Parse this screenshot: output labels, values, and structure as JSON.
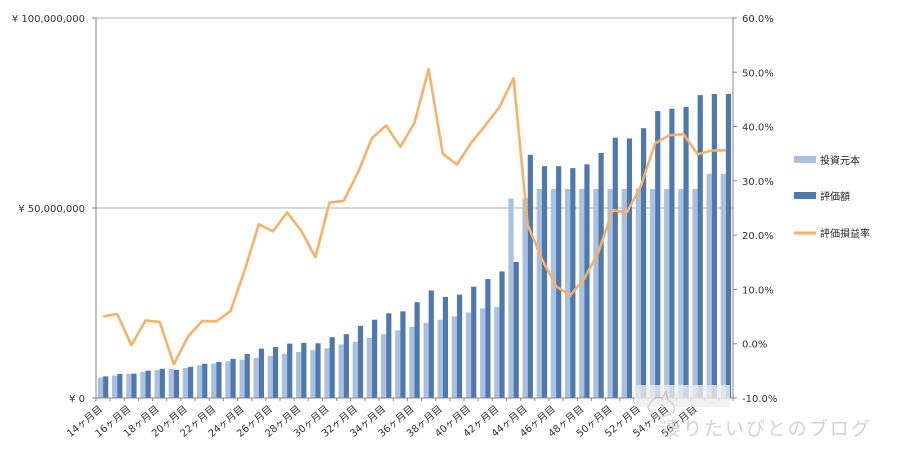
{
  "chart_data": {
    "type": "bar",
    "categories": [
      "14ヶ月目",
      "15ヶ月目",
      "16ヶ月目",
      "17ヶ月目",
      "18ヶ月目",
      "19ヶ月目",
      "20ヶ月目",
      "21ヶ月目",
      "22ヶ月目",
      "23ヶ月目",
      "24ヶ月目",
      "25ヶ月目",
      "26ヶ月目",
      "27ヶ月目",
      "28ヶ月目",
      "29ヶ月目",
      "30ヶ月目",
      "31ヶ月目",
      "32ヶ月目",
      "33ヶ月目",
      "34ヶ月目",
      "35ヶ月目",
      "36ヶ月目",
      "37ヶ月目",
      "38ヶ月目",
      "39ヶ月目",
      "40ヶ月目",
      "41ヶ月目",
      "42ヶ月目",
      "43ヶ月目",
      "44ヶ月目",
      "45ヶ月目",
      "46ヶ月目",
      "47ヶ月目",
      "48ヶ月目",
      "49ヶ月目",
      "50ヶ月目",
      "51ヶ月目",
      "52ヶ月目",
      "53ヶ月目",
      "54ヶ月目",
      "55ヶ月目",
      "56ヶ月目",
      "57ヶ月目",
      "58ヶ月目"
    ],
    "x_tick_labels": [
      "14ヶ月目",
      "16ヶ月目",
      "18ヶ月目",
      "20ヶ月目",
      "22ヶ月目",
      "24ヶ月目",
      "26ヶ月目",
      "28ヶ月目",
      "30ヶ月目",
      "32ヶ月目",
      "34ヶ月目",
      "36ヶ月目",
      "38ヶ月目",
      "40ヶ月目",
      "42ヶ月目",
      "44ヶ月目",
      "46ヶ月目",
      "48ヶ月目",
      "50ヶ月目",
      "52ヶ月目",
      "54ヶ月目",
      "56ヶ月目"
    ],
    "series": [
      {
        "name": "投資元本",
        "axis": "left",
        "kind": "bar",
        "color": "#a9c1de",
        "values": [
          5400000,
          5900000,
          6400000,
          6900000,
          7400000,
          7700000,
          7900000,
          8600000,
          9100000,
          9700000,
          10100000,
          10600000,
          11100000,
          11600000,
          12100000,
          12600000,
          13100000,
          14100000,
          14800000,
          15800000,
          16800000,
          17800000,
          18700000,
          19800000,
          20600000,
          21500000,
          22500000,
          23600000,
          24000000,
          52500000,
          52500000,
          55000000,
          55000000,
          55000000,
          55000000,
          55000000,
          55000000,
          55000000,
          55000000,
          55000000,
          55000000,
          55000000,
          55000000,
          59000000,
          59000000
        ]
      },
      {
        "name": "評価額",
        "axis": "left",
        "kind": "bar",
        "color": "#4f78ad",
        "values": [
          5700000,
          6300000,
          6400000,
          7200000,
          7700000,
          7400000,
          8200000,
          9000000,
          9500000,
          10300000,
          11600000,
          13000000,
          13400000,
          14300000,
          14500000,
          14400000,
          16000000,
          16800000,
          19000000,
          20600000,
          22300000,
          22800000,
          25200000,
          28300000,
          26600000,
          27200000,
          29300000,
          31300000,
          33300000,
          35800000,
          64000000,
          61000000,
          61000000,
          60500000,
          61500000,
          64500000,
          68500000,
          68300000,
          71000000,
          75500000,
          76100000,
          76600000,
          79700000,
          80000000,
          80000000
        ]
      },
      {
        "name": "評価損益率",
        "axis": "right",
        "kind": "line",
        "color": "#f8b16a",
        "values": [
          5.0,
          5.5,
          -0.3,
          4.3,
          4.0,
          -3.8,
          1.3,
          4.2,
          4.1,
          6.0,
          13.5,
          22.0,
          20.7,
          24.2,
          20.8,
          15.9,
          26.0,
          26.3,
          31.5,
          37.9,
          40.2,
          36.3,
          40.7,
          50.6,
          35.0,
          33.0,
          37.0,
          40.2,
          43.6,
          48.9,
          21.9,
          15.6,
          10.6,
          8.9,
          12.0,
          16.9,
          24.6,
          24.2,
          29.1,
          36.9,
          38.4,
          38.6,
          34.9,
          35.6,
          35.6
        ]
      }
    ],
    "y_left": {
      "min": 0,
      "max": 100000000,
      "ticks": [
        0,
        50000000,
        100000000
      ],
      "tick_labels": [
        "¥ 0",
        "¥ 50,000,000",
        "¥ 100,000,000"
      ]
    },
    "y_right": {
      "min": -10,
      "max": 60,
      "ticks": [
        -10,
        0,
        10,
        20,
        30,
        40,
        50,
        60
      ],
      "tick_labels": [
        "-10.0%",
        "0.0%",
        "10.0%",
        "20.0%",
        "30.0%",
        "40.0%",
        "50.0%",
        "60.0%"
      ]
    },
    "grid": {
      "horizontal": true,
      "vertical": false,
      "color": "#999999"
    },
    "legend": {
      "position": "right"
    }
  },
  "watermark": {
    "text": "凄りたいびとのブログ",
    "icon": "cat-icon"
  }
}
